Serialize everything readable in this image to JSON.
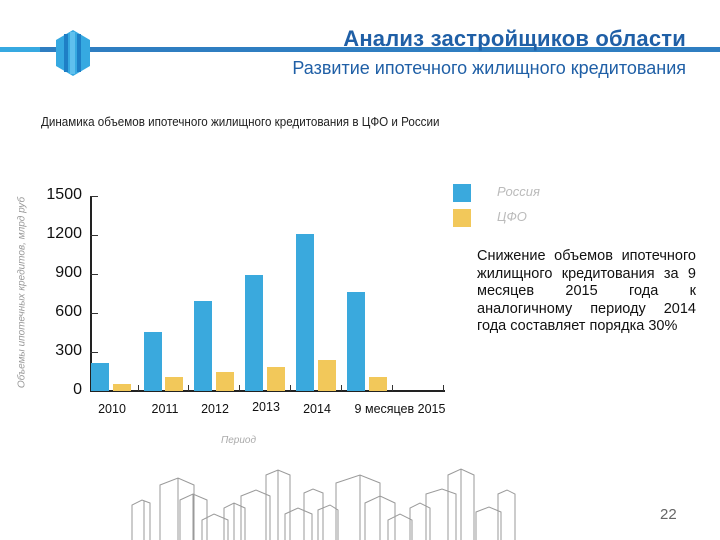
{
  "header": {
    "title": "Анализ застройщиков области",
    "subtitle": "Развитие ипотечного жилищного кредитования"
  },
  "colors": {
    "russia": "#3aa9dd",
    "cfo": "#f2c85a",
    "header_accent": "#1f5fa6"
  },
  "chart_data": {
    "type": "bar",
    "title": "Динамика объемов ипотечного жилищного кредитования в ЦФО и России",
    "xlabel": "Период",
    "ylabel": "Объемы ипотечных кредитов, млрд руб",
    "categories": [
      "2010",
      "2011",
      "2012",
      "2013",
      "2014",
      "9 месяцев 2015"
    ],
    "series": [
      {
        "name": "Россия",
        "values": [
          218,
          451,
          690,
          890,
          1210,
          760
        ]
      },
      {
        "name": "ЦФО",
        "values": [
          52,
          105,
          146,
          185,
          236,
          108
        ]
      }
    ],
    "yticks": [
      "0",
      "300",
      "600",
      "900",
      "1200",
      "1500"
    ],
    "ylim": [
      0,
      1500
    ],
    "grid": false,
    "legend_position": "top-right"
  },
  "legend": {
    "russia": "Россия",
    "cfo": "ЦФО"
  },
  "note": "Снижение объемов ипотечного жилищного кредитования за 9 месяцев 2015 года к аналогичному периоду 2014 года составляет порядка 30%",
  "page_number": "22"
}
